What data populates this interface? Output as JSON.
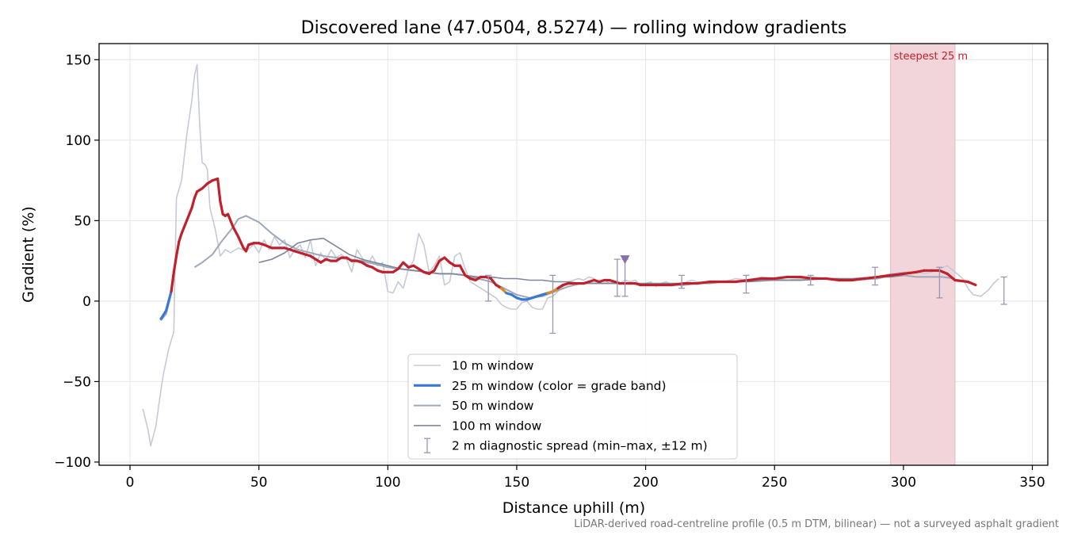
{
  "chart_data": {
    "type": "line",
    "title": "Discovered lane (47.0504, 8.5274) — rolling window gradients",
    "xlabel": "Distance uphill (m)",
    "ylabel": "Gradient (%)",
    "xlim": [
      -12,
      356
    ],
    "ylim": [
      -102,
      160
    ],
    "x_ticks": [
      0,
      50,
      100,
      150,
      200,
      250,
      300,
      350
    ],
    "y_ticks": [
      -100,
      -50,
      0,
      50,
      100,
      150
    ],
    "x_tick_labels": [
      "0",
      "50",
      "100",
      "150",
      "200",
      "250",
      "300",
      "350"
    ],
    "y_tick_labels": [
      "−100",
      "−50",
      "0",
      "50",
      "100",
      "150"
    ],
    "grid": true,
    "legend_position": "lower-center",
    "footnote": "LiDAR-derived road-centreline profile (0.5 m DTM, bilinear) — not a surveyed asphalt gradient",
    "colors": {
      "w10": "#c5cbd6",
      "w25_low": "#3a78d8",
      "w25_mid": "#d98a1a",
      "w25_high": "#c0202c",
      "w50": "#9ea8b6",
      "w100": "#7e8798",
      "diag": "#9a95b5",
      "band_fill": "#f2d5da"
    },
    "grade_band_thresholds": [
      5,
      8
    ],
    "highlight": {
      "label": "steepest 25 m",
      "x_start": 295,
      "x_end": 320
    },
    "marker": {
      "x": 192,
      "y": 26
    },
    "legend": [
      {
        "label": "10 m window",
        "style": "w10"
      },
      {
        "label": "25 m window (color = grade band)",
        "style": "w25"
      },
      {
        "label": "50 m window",
        "style": "w50"
      },
      {
        "label": "100 m window",
        "style": "w100"
      },
      {
        "label": "2 m diagnostic spread (min–max, ±12 m)",
        "style": "diag"
      }
    ],
    "series": [
      {
        "name": "10 m window",
        "style": "w10",
        "x": [
          5,
          7,
          8,
          10,
          12,
          13,
          15,
          17,
          18,
          20,
          22,
          24,
          25,
          26,
          27,
          28,
          29,
          30,
          31,
          33,
          35,
          37,
          39,
          42,
          45,
          48,
          50,
          52,
          54,
          56,
          58,
          60,
          62,
          64,
          66,
          68,
          70,
          72,
          74,
          76,
          78,
          80,
          82,
          84,
          86,
          88,
          90,
          92,
          94,
          96,
          98,
          100,
          102,
          104,
          106,
          108,
          110,
          112,
          114,
          116,
          118,
          120,
          122,
          124,
          126,
          128,
          130,
          132,
          134,
          136,
          138,
          140,
          142,
          144,
          146,
          148,
          150,
          152,
          154,
          156,
          158,
          160,
          162,
          164,
          166,
          168,
          170,
          172,
          174,
          176,
          178,
          180,
          182,
          184,
          186,
          188,
          190,
          192,
          194,
          196,
          198,
          200,
          202,
          204,
          206,
          208,
          210,
          212,
          214,
          216,
          218,
          220,
          225,
          230,
          235,
          240,
          245,
          250,
          255,
          260,
          265,
          270,
          275,
          280,
          285,
          290,
          295,
          300,
          305,
          308,
          311,
          314,
          317,
          320,
          323,
          325,
          327,
          330,
          333,
          335,
          337
        ],
        "y": [
          -67,
          -80,
          -90,
          -78,
          -55,
          -45,
          -30,
          -19,
          64,
          75,
          103,
          125,
          140,
          147,
          110,
          86,
          85,
          82,
          58,
          45,
          28,
          32,
          30,
          33,
          31,
          35,
          30,
          38,
          32,
          40,
          35,
          38,
          27,
          32,
          35,
          27,
          38,
          22,
          30,
          25,
          32,
          27,
          29,
          26,
          18,
          32,
          27,
          22,
          28,
          22,
          24,
          6,
          5,
          12,
          8,
          20,
          25,
          42,
          35,
          18,
          22,
          28,
          10,
          12,
          28,
          30,
          20,
          12,
          10,
          8,
          6,
          4,
          2,
          -2,
          -4,
          -5,
          -5,
          -1,
          0,
          -4,
          -5,
          -5,
          2,
          3,
          6,
          9,
          12,
          13,
          14,
          13,
          15,
          14,
          12,
          13,
          11,
          12,
          11,
          13,
          12,
          13,
          10,
          11,
          12,
          9,
          11,
          12,
          10,
          11,
          9,
          12,
          13,
          12,
          11,
          12,
          14,
          13,
          15,
          14,
          13,
          14,
          15,
          14,
          14,
          13,
          14,
          15,
          17,
          18,
          18,
          17,
          18,
          20,
          22,
          18,
          14,
          8,
          4,
          3,
          7,
          11,
          14
        ]
      },
      {
        "name": "25 m window (color = grade band)",
        "style": "w25",
        "x": [
          12,
          14,
          16,
          17,
          18,
          19,
          20,
          22,
          24,
          25,
          26,
          27,
          28,
          30,
          32,
          34,
          35,
          36,
          37,
          38,
          40,
          42,
          44,
          45,
          46,
          48,
          50,
          52,
          55,
          58,
          60,
          62,
          64,
          66,
          68,
          70,
          72,
          74,
          76,
          78,
          80,
          82,
          84,
          86,
          88,
          90,
          92,
          94,
          96,
          98,
          100,
          102,
          104,
          106,
          108,
          110,
          112,
          114,
          116,
          118,
          120,
          122,
          124,
          126,
          128,
          130,
          132,
          134,
          136,
          138,
          140,
          142,
          144,
          146,
          148,
          150,
          152,
          154,
          156,
          158,
          160,
          162,
          164,
          166,
          168,
          170,
          172,
          174,
          176,
          178,
          180,
          182,
          184,
          186,
          188,
          190,
          192,
          194,
          196,
          198,
          200,
          205,
          210,
          215,
          220,
          225,
          230,
          235,
          240,
          245,
          250,
          255,
          260,
          265,
          270,
          275,
          280,
          285,
          290,
          295,
          300,
          305,
          308,
          311,
          314,
          317,
          320,
          325,
          328
        ],
        "y": [
          -11,
          -6,
          6,
          18,
          28,
          37,
          42,
          50,
          58,
          64,
          68,
          69,
          70,
          73,
          75,
          76,
          62,
          54,
          53,
          54,
          46,
          40,
          33,
          31,
          35,
          36,
          36,
          35,
          33,
          33,
          33,
          32,
          31,
          30,
          29,
          28,
          26,
          24,
          26,
          25,
          25,
          27,
          27,
          25,
          25,
          24,
          22,
          21,
          19,
          18,
          18,
          18,
          20,
          24,
          21,
          22,
          20,
          18,
          17,
          19,
          25,
          27,
          24,
          22,
          22,
          16,
          14,
          13,
          15,
          15,
          14,
          10,
          8,
          5,
          4,
          2,
          1,
          1,
          2,
          3,
          4,
          5,
          6,
          8,
          10,
          11,
          11,
          11,
          11,
          12,
          13,
          12,
          13,
          13,
          12,
          11,
          11,
          11,
          11,
          10,
          10,
          10,
          10,
          11,
          11,
          12,
          12,
          12,
          13,
          14,
          14,
          15,
          15,
          14,
          14,
          13,
          13,
          14,
          15,
          16,
          17,
          18,
          19,
          19,
          19,
          17,
          13,
          12,
          10
        ]
      },
      {
        "name": "50 m window",
        "style": "w50",
        "x": [
          12,
          14,
          16,
          17
        ],
        "y": [
          -12,
          -8,
          5,
          14
        ]
      },
      {
        "name": "50 m window",
        "style": "w50",
        "x": [
          25,
          28,
          32,
          35,
          38,
          40,
          42,
          45,
          50,
          55,
          60,
          65,
          70,
          75,
          80,
          85,
          90,
          95,
          100,
          105,
          110,
          115,
          120,
          125,
          130,
          135,
          140,
          145,
          150,
          155,
          160,
          165,
          170,
          175,
          180,
          185,
          190,
          195,
          200,
          205,
          210,
          215,
          220,
          225,
          230,
          240,
          250,
          260,
          270,
          280,
          290,
          295,
          300,
          305,
          310,
          315,
          320
        ],
        "y": [
          21,
          24,
          29,
          36,
          42,
          46,
          51,
          53,
          49,
          42,
          36,
          32,
          30,
          28,
          27,
          26,
          25,
          23,
          21,
          20,
          19,
          18,
          17,
          17,
          16,
          14,
          12,
          8,
          4,
          2,
          3,
          6,
          9,
          11,
          11,
          11,
          11,
          11,
          10,
          10,
          10,
          10,
          11,
          11,
          12,
          13,
          13,
          13,
          14,
          13,
          14,
          16,
          16,
          15,
          15,
          15,
          14
        ]
      },
      {
        "name": "100 m window",
        "style": "w100",
        "x": [
          50,
          55,
          60,
          65,
          70,
          75,
          80,
          85,
          90,
          95,
          100,
          105,
          110,
          115,
          120,
          125,
          130,
          135,
          140,
          145,
          150,
          155,
          160,
          165,
          170,
          175,
          180,
          185,
          190,
          195,
          200,
          210,
          220,
          230,
          240,
          250,
          260,
          270,
          280,
          290,
          295,
          300
        ],
        "y": [
          24,
          26,
          30,
          36,
          38,
          39,
          34,
          29,
          26,
          24,
          22,
          20,
          19,
          18,
          17,
          17,
          16,
          15,
          15,
          14,
          14,
          13,
          13,
          12,
          12,
          11,
          11,
          11,
          11,
          11,
          11,
          11,
          11,
          12,
          12,
          13,
          13,
          14,
          14,
          15,
          15,
          16
        ]
      }
    ],
    "diagnostic_spread": {
      "name": "2 m diagnostic spread (min–max, ±12 m)",
      "points": [
        {
          "x": 139,
          "min": 0,
          "max": 16
        },
        {
          "x": 164,
          "min": -20,
          "max": 16
        },
        {
          "x": 189,
          "min": 3,
          "max": 26
        },
        {
          "x": 214,
          "min": 8,
          "max": 16
        },
        {
          "x": 239,
          "min": 5,
          "max": 16
        },
        {
          "x": 264,
          "min": 10,
          "max": 16
        },
        {
          "x": 289,
          "min": 10,
          "max": 21
        },
        {
          "x": 314,
          "min": 2,
          "max": 21
        },
        {
          "x": 339,
          "min": -2,
          "max": 15
        }
      ],
      "extra_bar": {
        "x": 192,
        "min": 3,
        "max": 26
      }
    }
  }
}
